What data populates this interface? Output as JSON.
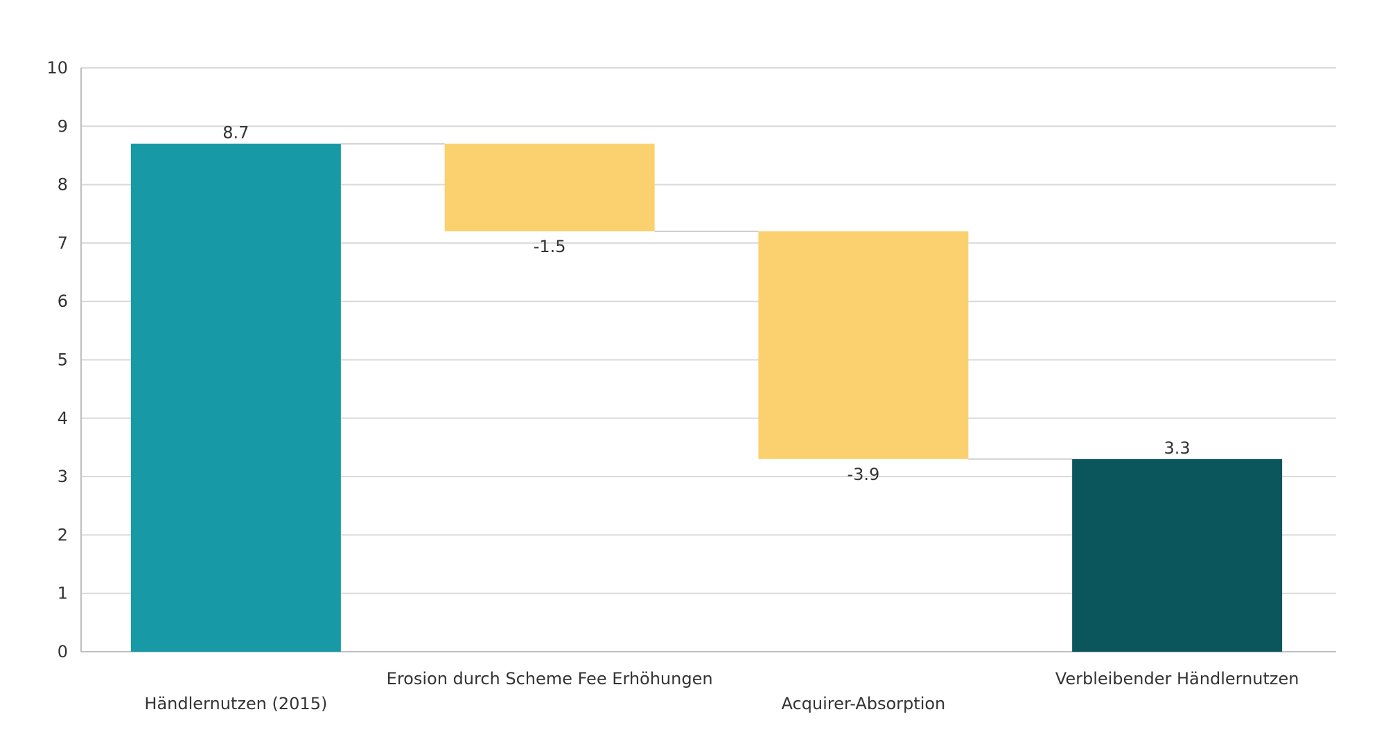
{
  "chart_data": {
    "type": "bar",
    "subtype": "waterfall",
    "title": "",
    "xlabel": "",
    "ylabel": "",
    "ylim": [
      0,
      10
    ],
    "yticks": [
      0,
      1,
      2,
      3,
      4,
      5,
      6,
      7,
      8,
      9,
      10
    ],
    "grid": true,
    "categories": [
      "Händlernutzen (2015)",
      "Erosion durch Scheme Fee Erhöhungen",
      "Acquirer-Absorption",
      "Verbleibender Händlernutzen"
    ],
    "values": [
      8.7,
      -1.5,
      -3.9,
      3.3
    ],
    "value_labels": [
      "8.7",
      "-1.5",
      "-3.9",
      "3.3"
    ],
    "kinds": [
      "total",
      "delta",
      "delta",
      "total"
    ],
    "colors": {
      "start_total": "#1899a6",
      "decrease": "#fbd06e",
      "end_total": "#0b565c",
      "grid": "#d9d9d9",
      "axis": "#bfbfbf",
      "connector": "#cfcfcf",
      "text": "#333333"
    }
  }
}
